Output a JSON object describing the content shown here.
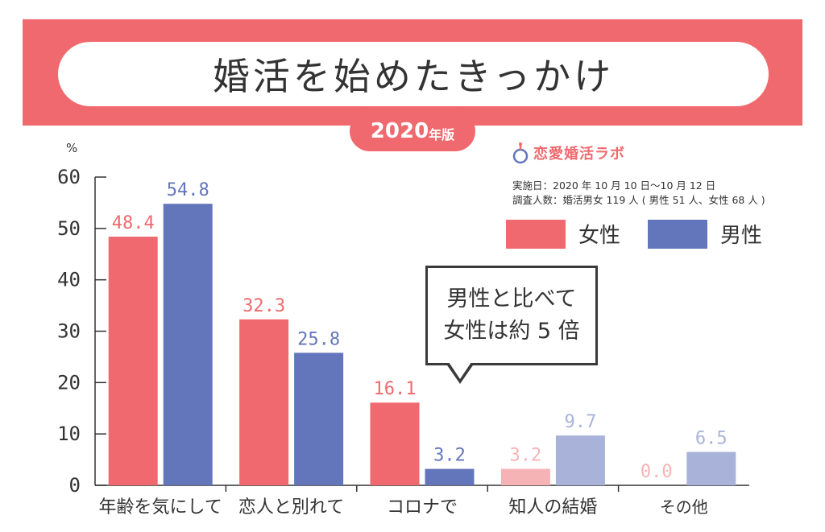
{
  "header": {
    "title": "婚活を始めたきっかけ",
    "year": "2020",
    "year_suffix": "年版"
  },
  "brand": {
    "name": "恋愛婚活ラボ",
    "survey_period": "実施日：2020 年 10 月 10 日〜10 月 12 日",
    "respondents": "調査人数：婚活男女 119 人 ( 男性 51 人、女性 68 人 )"
  },
  "callout": {
    "line1": "男性と比べて",
    "line2": "女性は約 5 倍"
  },
  "colors": {
    "female": "#f0696e",
    "male": "#6476bb",
    "female_light": "#f6b3b5",
    "male_light": "#a9b3d9",
    "banner": "#f0696e"
  },
  "chart_data": {
    "type": "bar",
    "ylabel": "%",
    "ylim": [
      0,
      60
    ],
    "yticks": [
      "0",
      "10",
      "20",
      "30",
      "40",
      "50",
      "60"
    ],
    "categories": [
      "年齢を気にして",
      "恋人と別れて",
      "コロナで",
      "知人の結婚",
      "その他"
    ],
    "series": [
      {
        "name": "女性",
        "values": [
          48.4,
          32.3,
          16.1,
          3.2,
          0.0
        ],
        "labels": [
          "48.4",
          "32.3",
          "16.1",
          "3.2",
          "0.0"
        ]
      },
      {
        "name": "男性",
        "values": [
          54.8,
          25.8,
          3.2,
          9.7,
          6.5
        ],
        "labels": [
          "54.8",
          "25.8",
          "3.2",
          "9.7",
          "6.5"
        ]
      }
    ],
    "grid": false,
    "legend": "top-right"
  }
}
